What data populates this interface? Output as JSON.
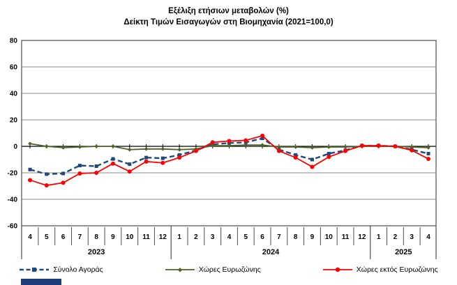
{
  "title": {
    "line1": "Εξέλιξη ετήσιων μεταβολών (%)",
    "line2": "Δείκτη Τιμών Εισαγωγών στη Βιομηχανία (2021=100,0)"
  },
  "colors": {
    "total_market": "#1F497D",
    "eurozone": "#4F6228",
    "non_eurozone": "#FF0000",
    "gridline": "#8c8c8c",
    "plot_border": "#4d4d4d",
    "zero_axis": "#000000",
    "footer_bar": "#1F3D7A"
  },
  "chart_data": {
    "type": "line",
    "title": "Εξέλιξη ετήσιων μεταβολών (%)",
    "subtitle": "Δείκτη Τιμών Εισαγωγών στη Βιομηχανία (2021=100,0)",
    "ylim": [
      -60,
      80
    ],
    "yticks": [
      80,
      60,
      40,
      20,
      0,
      -20,
      -40,
      -60
    ],
    "grid": true,
    "legend_position": "bottom",
    "x_months": [
      "4",
      "5",
      "6",
      "7",
      "8",
      "9",
      "10",
      "11",
      "12",
      "1",
      "2",
      "3",
      "4",
      "5",
      "6",
      "7",
      "8",
      "9",
      "10",
      "11",
      "12",
      "1",
      "2",
      "3",
      "4"
    ],
    "year_groups": [
      {
        "label": "2023",
        "count": 9
      },
      {
        "label": "2024",
        "count": 12
      },
      {
        "label": "2025",
        "count": 4
      }
    ],
    "series": [
      {
        "name": "Σύνολο Αγοράς",
        "color": "#1F497D",
        "style": "dashed",
        "marker": "square",
        "values": [
          -17.5,
          -21,
          -20.5,
          -14.5,
          -15,
          -9.5,
          -13.5,
          -8.5,
          -9,
          -6.5,
          -3,
          1.5,
          2.5,
          3,
          6,
          -2.5,
          -6.5,
          -10,
          -5.5,
          -3,
          0.5,
          0.5,
          0,
          -2.5,
          -5.5
        ]
      },
      {
        "name": "Χώρες Ευρωζώνης",
        "color": "#4F6228",
        "style": "solid",
        "marker": "diamond",
        "values": [
          2,
          0,
          -1,
          -0.5,
          0,
          0,
          -2.5,
          -2,
          -2,
          -2.5,
          -2,
          0.5,
          0.5,
          1,
          1,
          -0.5,
          -0.5,
          -1,
          -0.5,
          -0.5,
          0,
          0,
          0,
          -0.5,
          -1
        ]
      },
      {
        "name": "Χώρες εκτός Ευρωζώνης",
        "color": "#FF0000",
        "style": "solid",
        "marker": "circle",
        "values": [
          -25.5,
          -29.5,
          -27.5,
          -20.5,
          -20,
          -13,
          -19,
          -11.5,
          -12.5,
          -8.5,
          -3.5,
          3,
          4,
          4.5,
          8,
          -3.5,
          -8.5,
          -15.5,
          -8,
          -3.5,
          0.5,
          0.5,
          0,
          -3,
          -9.5
        ]
      }
    ]
  }
}
